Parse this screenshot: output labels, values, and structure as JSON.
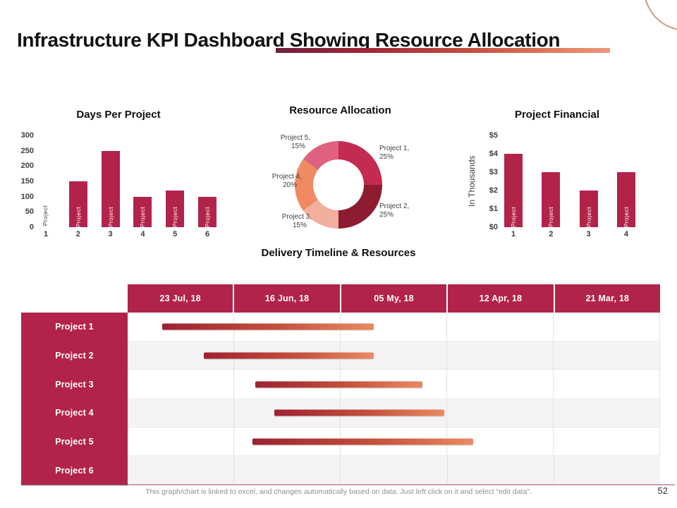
{
  "slide": {
    "title": "Infrastructure KPI Dashboard Showing Resource Allocation",
    "footer_note": "This graph/chart is linked to excel, and changes automatically based on data. Just left click on it and select “edit data”.",
    "page_number": "52"
  },
  "colors": {
    "primary_crimson": "#B2234A",
    "divider_gradient": [
      "#6D2040",
      "#EC9A7E"
    ],
    "gantt_bar_gradient": [
      "#9E2130",
      "#EA8A62"
    ],
    "row_alt_background": "#F5F3F4",
    "corner_arc": "#D09A88"
  },
  "chart_data": [
    {
      "id": "days_per_project",
      "type": "bar",
      "title": "Days Per Project",
      "categories": [
        "1",
        "2",
        "3",
        "4",
        "5",
        "6"
      ],
      "values": [
        0,
        150,
        250,
        100,
        120,
        100
      ],
      "bar_label": "Project",
      "bar_color": "#B2234A",
      "ylim": [
        0,
        300
      ],
      "yticks": [
        "300",
        "250",
        "200",
        "150",
        "100",
        "50",
        "0"
      ],
      "grid": false,
      "legend": false
    },
    {
      "id": "resource_allocation",
      "type": "pie",
      "title": "Resource Allocation",
      "donut": true,
      "slices": [
        {
          "label": "Project 1",
          "value": 25,
          "color": "#C42B51"
        },
        {
          "label": "Project 2",
          "value": 25,
          "color": "#8E1C30"
        },
        {
          "label": "Project 3",
          "value": 15,
          "color": "#F2AF9D"
        },
        {
          "label": "Project 4",
          "value": 20,
          "color": "#F08A62"
        },
        {
          "label": "Project 5",
          "value": 15,
          "color": "#E0617F"
        }
      ],
      "legend": false
    },
    {
      "id": "project_financial",
      "type": "bar",
      "title": "Project Financial",
      "categories": [
        "1",
        "2",
        "3",
        "4"
      ],
      "values": [
        4,
        3,
        2,
        3
      ],
      "bar_label": "Project",
      "bar_color": "#B2234A",
      "ylabel": "In Thousands",
      "ylim": [
        0,
        5
      ],
      "yticks": [
        "$5",
        "$4",
        "$3",
        "$2",
        "$1",
        "$0"
      ],
      "grid": false,
      "legend": false
    },
    {
      "id": "delivery_timeline",
      "type": "gantt",
      "title": "Delivery Timeline & Resources",
      "columns": [
        "23 Jul, 18",
        "16 Jun, 18",
        "05 My, 18",
        "12 Apr, 18",
        "21 Mar, 18"
      ],
      "rows": [
        {
          "label": "Project 1",
          "bar": {
            "start_pct": 6.5,
            "end_pct": 46.2
          }
        },
        {
          "label": "Project 2",
          "bar": {
            "start_pct": 14.3,
            "end_pct": 46.2
          }
        },
        {
          "label": "Project 3",
          "bar": {
            "start_pct": 24.0,
            "end_pct": 55.4
          }
        },
        {
          "label": "Project 4",
          "bar": {
            "start_pct": 27.5,
            "end_pct": 59.5
          }
        },
        {
          "label": "Project 5",
          "bar": {
            "start_pct": 23.4,
            "end_pct": 64.9
          }
        },
        {
          "label": "Project 6",
          "bar": null
        }
      ]
    }
  ]
}
